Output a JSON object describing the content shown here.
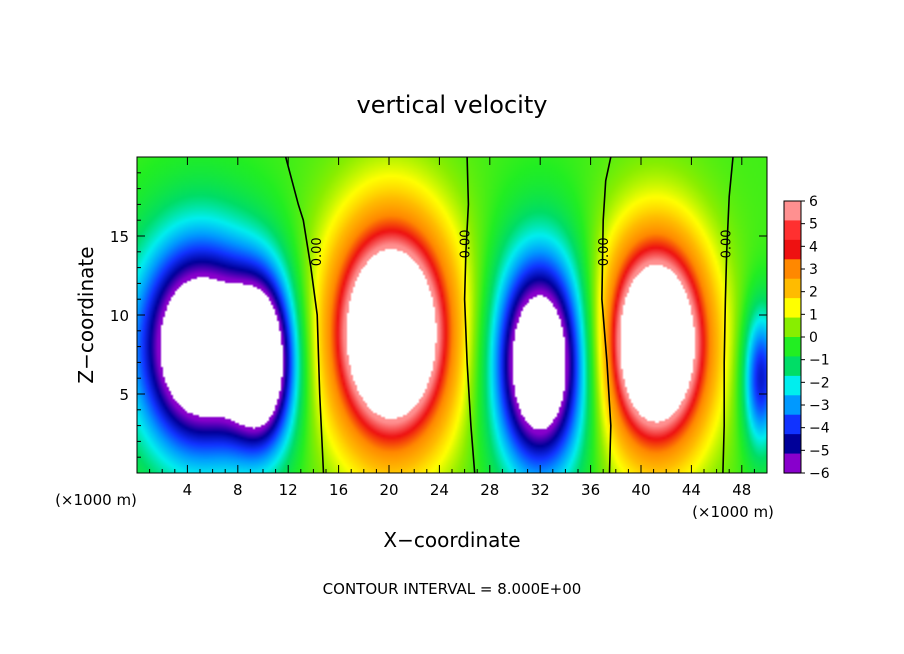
{
  "chart_data": {
    "type": "heatmap",
    "title": "vertical velocity",
    "xlabel": "X−coordinate",
    "ylabel": "Z−coordinate",
    "x_unit": "(×1000 m)",
    "y_unit": "(×1000 m)",
    "footer": "CONTOUR INTERVAL = 8.000E+00",
    "xlim": [
      0,
      50
    ],
    "ylim": [
      0,
      20
    ],
    "x_ticks": [
      4,
      8,
      12,
      16,
      20,
      24,
      28,
      32,
      36,
      40,
      44,
      48
    ],
    "x_tick_labels": [
      "4",
      "8",
      "12",
      "16",
      "20",
      "24",
      "28",
      "32",
      "36",
      "40",
      "44",
      "48"
    ],
    "y_ticks": [
      5,
      10,
      15
    ],
    "y_tick_labels": [
      "5",
      "10",
      "15"
    ],
    "colorbar": {
      "range": [
        -6,
        6
      ],
      "labels": [
        "6",
        "5",
        "4",
        "3",
        "2",
        "1",
        "0",
        "−1",
        "−2",
        "−3",
        "−4",
        "−5",
        "−6"
      ],
      "colors": [
        "#ff9090",
        "#ff3030",
        "#ee1111",
        "#ff8800",
        "#ffbb00",
        "#ffff00",
        "#88ee00",
        "#22ee22",
        "#00dd66",
        "#00eeee",
        "#0099ff",
        "#1133ff",
        "#000099",
        "#8800cc"
      ]
    },
    "contour_labels": [
      "0.00",
      "0.00",
      "0.00",
      "0.00"
    ],
    "contour_label_x": [
      14.6,
      26.4,
      37.4,
      47.1
    ],
    "contour_label_z": [
      14.0,
      14.5,
      14.0,
      14.5
    ],
    "zero_contours": [
      {
        "x": [
          11.8,
          12.3,
          12.8,
          13.2,
          13.8,
          14.3,
          14.5,
          14.8
        ],
        "z": [
          20.0,
          18.5,
          17.0,
          16.0,
          13.0,
          10.0,
          5.0,
          0.0
        ]
      },
      {
        "x": [
          26.2,
          26.3,
          26.1,
          26.0,
          26.2,
          26.5,
          26.8
        ],
        "z": [
          20.0,
          17.0,
          14.0,
          11.0,
          7.0,
          3.0,
          0.0
        ]
      },
      {
        "x": [
          37.6,
          37.2,
          37.0,
          36.9,
          37.3,
          37.6,
          37.5
        ],
        "z": [
          20.0,
          18.5,
          16.0,
          11.0,
          7.0,
          3.0,
          0.0
        ]
      },
      {
        "x": [
          47.3,
          47.0,
          46.8,
          46.7,
          46.6,
          46.6,
          46.5
        ],
        "z": [
          20.0,
          17.5,
          14.0,
          11.0,
          7.0,
          3.0,
          0.0
        ]
      }
    ],
    "updrafts": [
      {
        "cx": 20.2,
        "cz": 8.8,
        "rx": 5.6,
        "rz": 8.4,
        "peak": 10
      },
      {
        "cx": 41.2,
        "cz": 8.2,
        "rx": 4.8,
        "rz": 7.8,
        "peak": 10
      }
    ],
    "downdrafts": [
      {
        "cx": 5.0,
        "cz": 8.0,
        "rx": 5.5,
        "rz": 7.5,
        "peak": -10
      },
      {
        "cx": 10.0,
        "cz": 7.0,
        "rx": 2.8,
        "rz": 6.0,
        "peak": -8
      },
      {
        "cx": 32.0,
        "cz": 7.0,
        "rx": 4.0,
        "rz": 7.5,
        "peak": -10
      },
      {
        "cx": 49.5,
        "cz": 6.0,
        "rx": 1.6,
        "rz": 5.0,
        "peak": -5
      }
    ]
  }
}
